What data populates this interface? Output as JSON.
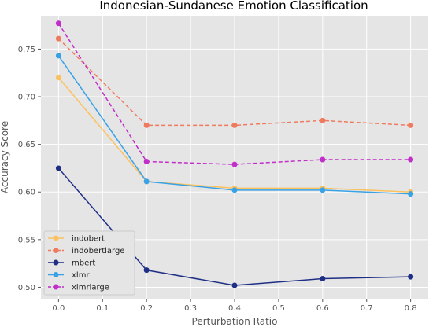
{
  "chart_data": {
    "type": "line",
    "title": "Indonesian-Sundanese Emotion Classification",
    "xlabel": "Perturbation Ratio",
    "ylabel": "Accuracy Score",
    "xlim": [
      -0.04,
      0.84
    ],
    "ylim": [
      0.488,
      0.785
    ],
    "xticks": [
      0.0,
      0.1,
      0.2,
      0.3,
      0.4,
      0.5,
      0.6,
      0.7,
      0.8
    ],
    "xtick_labels": [
      "0.0",
      "0.1",
      "0.2",
      "0.3",
      "0.4",
      "0.5",
      "0.6",
      "0.7",
      "0.8"
    ],
    "yticks": [
      0.5,
      0.55,
      0.6,
      0.65,
      0.7,
      0.75
    ],
    "ytick_labels": [
      "0.50",
      "0.55",
      "0.60",
      "0.65",
      "0.70",
      "0.75"
    ],
    "grid": true,
    "legend_position": "bottom-left",
    "x": [
      0.0,
      0.2,
      0.4,
      0.6,
      0.8
    ],
    "series": [
      {
        "name": "indobert",
        "color": "#fbc15e",
        "dash": "solid",
        "values": [
          0.72,
          0.611,
          0.604,
          0.604,
          0.6
        ]
      },
      {
        "name": "indobertlarge",
        "color": "#f07a5e",
        "dash": "dashed",
        "values": [
          0.761,
          0.67,
          0.67,
          0.675,
          0.67
        ]
      },
      {
        "name": "mbert",
        "color": "#1f2f86",
        "dash": "solid",
        "values": [
          0.625,
          0.518,
          0.502,
          0.509,
          0.511
        ]
      },
      {
        "name": "xlmr",
        "color": "#39a2e6",
        "dash": "solid",
        "values": [
          0.743,
          0.611,
          0.602,
          0.602,
          0.598
        ]
      },
      {
        "name": "xlmrlarge",
        "color": "#c22ecb",
        "dash": "dashed",
        "values": [
          0.777,
          0.632,
          0.629,
          0.634,
          0.634
        ]
      }
    ]
  }
}
